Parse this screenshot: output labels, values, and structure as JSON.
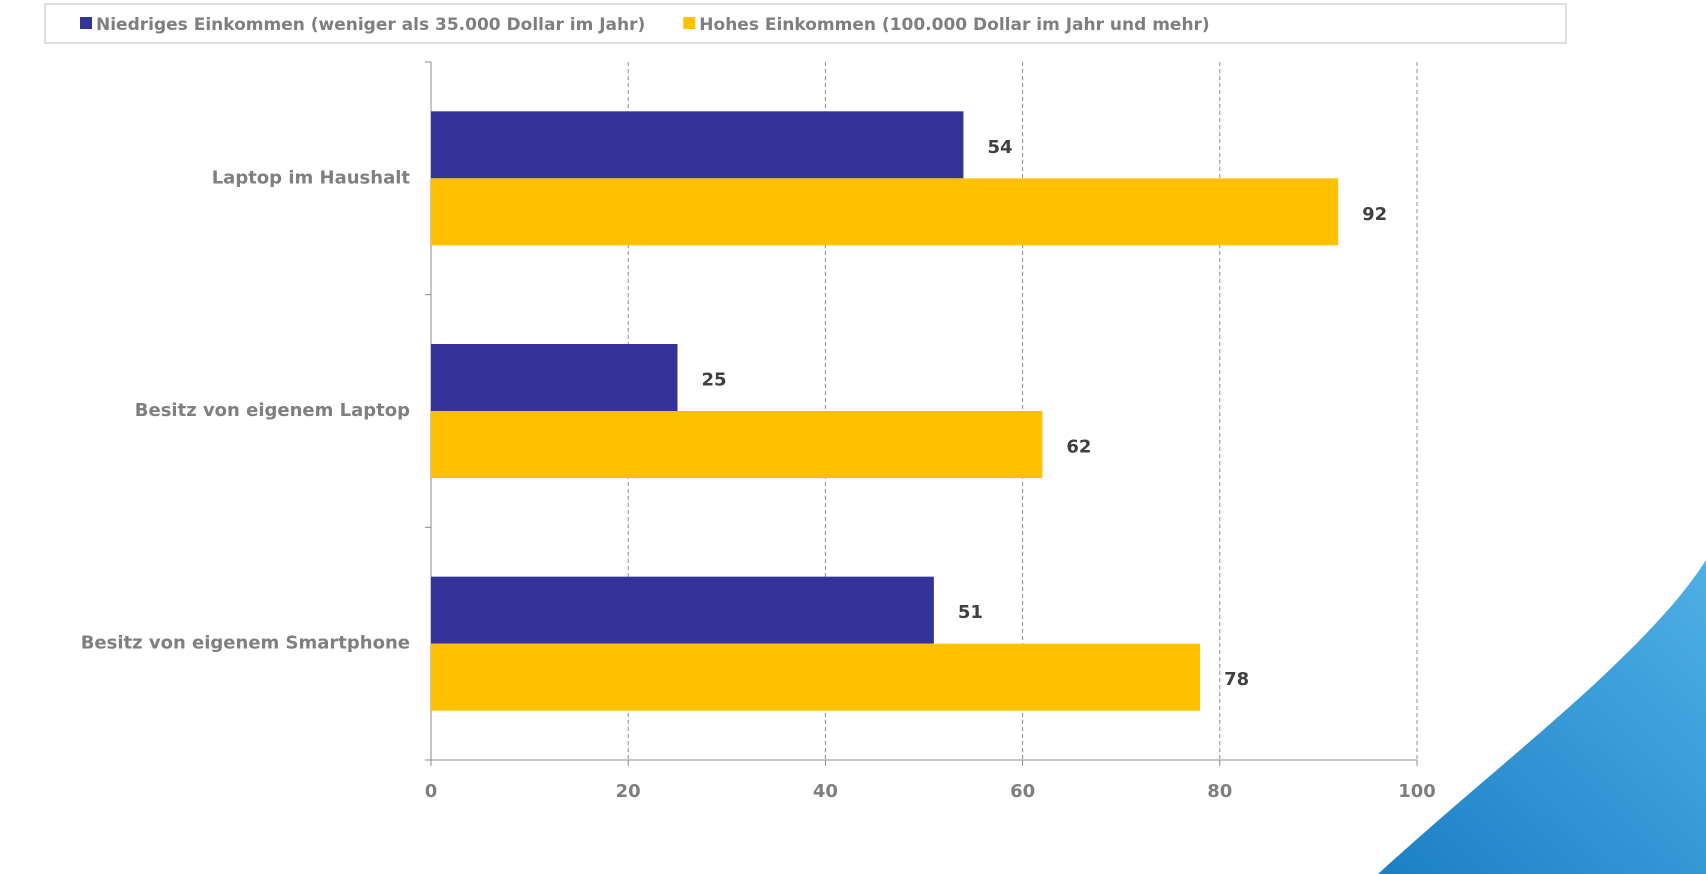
{
  "chart_data": {
    "type": "bar",
    "orientation": "horizontal",
    "categories": [
      "Laptop im Haushalt",
      "Besitz von eigenem Laptop",
      "Besitz von eigenem Smartphone"
    ],
    "series": [
      {
        "name": "Niedriges Einkommen (weniger als 35.000 Dollar im Jahr)",
        "color": "#333399",
        "values": [
          54,
          25,
          51
        ]
      },
      {
        "name": "Hohes Einkommen (100.000 Dollar im Jahr und mehr)",
        "color": "#ffc000",
        "values": [
          92,
          62,
          78
        ]
      }
    ],
    "xlim": [
      0,
      100
    ],
    "xticks": [
      0,
      20,
      40,
      60,
      80,
      100
    ],
    "grid": true,
    "legend": "top"
  }
}
